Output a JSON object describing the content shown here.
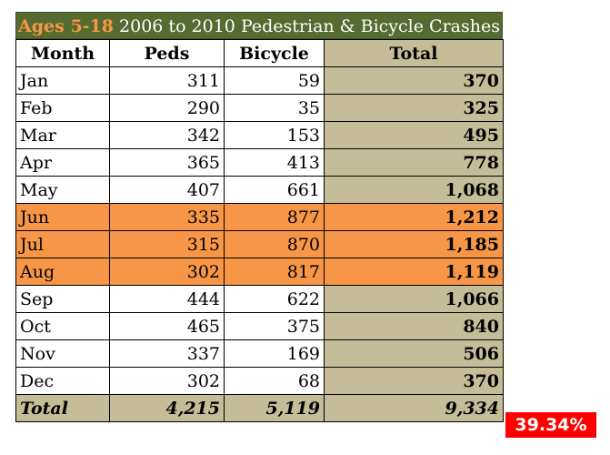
{
  "title": {
    "highlight": "Ages 5-18",
    "rest": " 2006 to 2010 Pedestrian & Bicycle  Crashes"
  },
  "chart_data": {
    "type": "table",
    "title": "Ages 5-18 2006 to 2010 Pedestrian & Bicycle  Crashes",
    "columns": [
      "Month",
      "Peds",
      "Bicycle",
      "Total"
    ],
    "rows": [
      {
        "month": "Jan",
        "peds": "311",
        "bicycle": "59",
        "total": "370",
        "highlight": false
      },
      {
        "month": "Feb",
        "peds": "290",
        "bicycle": "35",
        "total": "325",
        "highlight": false
      },
      {
        "month": "Mar",
        "peds": "342",
        "bicycle": "153",
        "total": "495",
        "highlight": false
      },
      {
        "month": "Apr",
        "peds": "365",
        "bicycle": "413",
        "total": "778",
        "highlight": false
      },
      {
        "month": "May",
        "peds": "407",
        "bicycle": "661",
        "total": "1,068",
        "highlight": false
      },
      {
        "month": "Jun",
        "peds": "335",
        "bicycle": "877",
        "total": "1,212",
        "highlight": true
      },
      {
        "month": "Jul",
        "peds": "315",
        "bicycle": "870",
        "total": "1,185",
        "highlight": true
      },
      {
        "month": "Aug",
        "peds": "302",
        "bicycle": "817",
        "total": "1,119",
        "highlight": true
      },
      {
        "month": "Sep",
        "peds": "444",
        "bicycle": "622",
        "total": "1,066",
        "highlight": false
      },
      {
        "month": "Oct",
        "peds": "465",
        "bicycle": "375",
        "total": "840",
        "highlight": false
      },
      {
        "month": "Nov",
        "peds": "337",
        "bicycle": "169",
        "total": "506",
        "highlight": false
      },
      {
        "month": "Dec",
        "peds": "302",
        "bicycle": "68",
        "total": "370",
        "highlight": false
      }
    ],
    "summary": {
      "label": "Total",
      "peds": "4,215",
      "bicycle": "5,119",
      "total": "9,334"
    },
    "percentage": "39.34%"
  },
  "colors": {
    "title_bg": "#556b2f",
    "title_highlight": "#f79646",
    "total_column_bg": "#c4bd97",
    "summer_row_bg": "#f79646",
    "percentage_bg": "#ff0000"
  }
}
